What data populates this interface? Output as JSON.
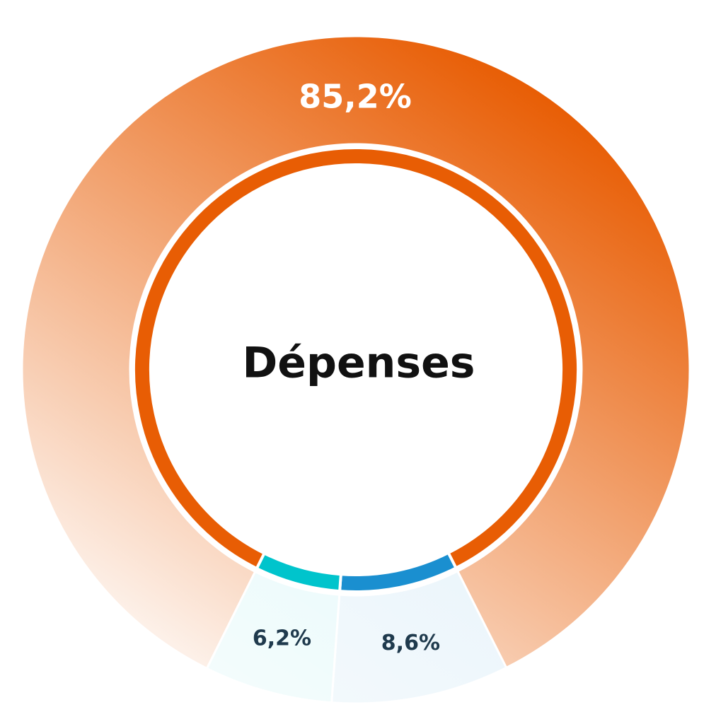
{
  "chart_data": {
    "type": "donut",
    "center_label": "Dépenses",
    "values": [
      85.2,
      8.6,
      6.2
    ],
    "value_labels": [
      "85,2%",
      "8,6%",
      "6,2%"
    ],
    "colors": [
      "#e85d04",
      "#1a8fd0",
      "#00c4cc"
    ]
  }
}
